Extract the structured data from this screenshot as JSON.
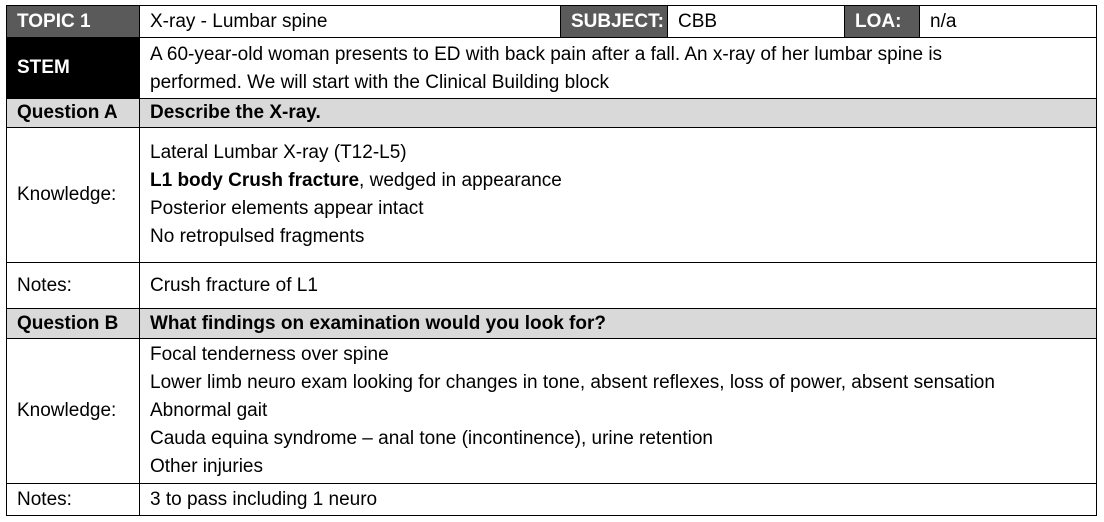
{
  "header": {
    "topic_label": "TOPIC 1",
    "topic_value": "X-ray - Lumbar spine",
    "subject_label": "SUBJECT:",
    "subject_value": "CBB",
    "loa_label": "LOA:",
    "loa_value": "n/a"
  },
  "stem": {
    "label": "STEM",
    "line1": "A 60-year-old woman presents to ED with back pain after a fall.  An x-ray of her lumbar spine is",
    "line2": "performed. We will start with the Clinical Building block"
  },
  "question_a": {
    "label": "Question A",
    "text": "Describe the X-ray.",
    "knowledge_label": "Knowledge:",
    "knowledge": {
      "line1": "Lateral Lumbar X-ray (T12-L5)",
      "line2_bold": "L1 body Crush fracture",
      "line2_rest": ", wedged in appearance",
      "line3": "Posterior elements appear intact",
      "line4": "No retropulsed fragments"
    },
    "notes_label": "Notes:",
    "notes": "Crush fracture of L1"
  },
  "question_b": {
    "label": "Question B",
    "text": "What findings on examination would you look for?",
    "knowledge_label": "Knowledge:",
    "knowledge_lines": [
      "Focal tenderness over spine",
      "Lower limb neuro exam looking for changes in tone, absent reflexes, loss of power, absent sensation",
      "Abnormal gait",
      "Cauda equina syndrome – anal tone (incontinence), urine retention",
      "Other injuries"
    ],
    "notes_label": "Notes:",
    "notes": "3 to pass including 1 neuro"
  }
}
